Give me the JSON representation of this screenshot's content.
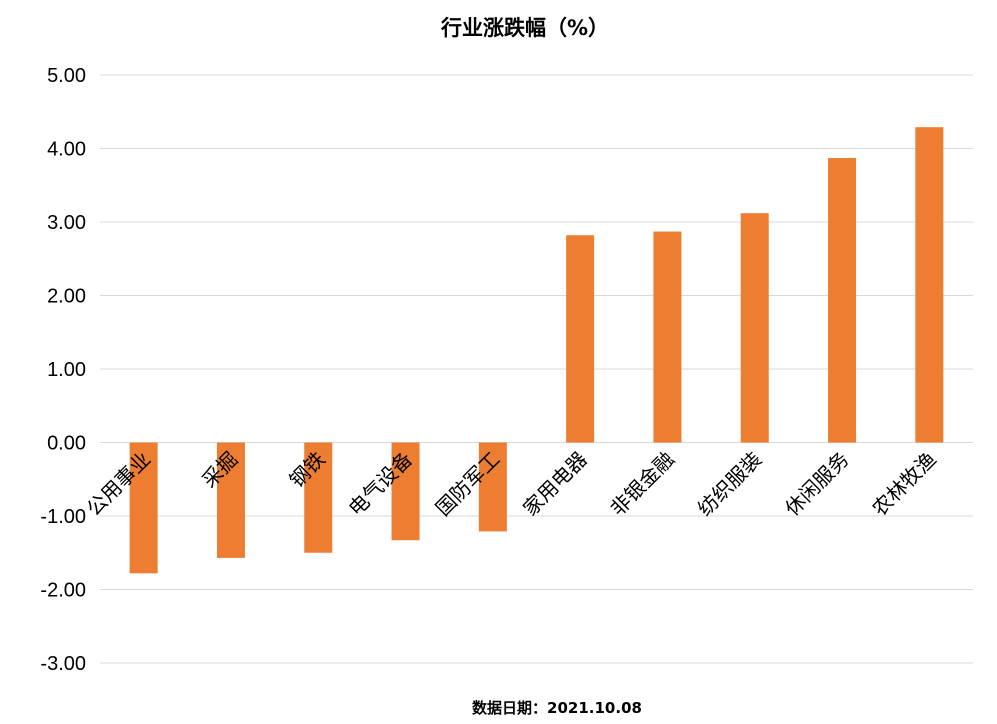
{
  "chart_data": {
    "type": "bar",
    "title": "行业涨跌幅（%）",
    "xlabel": "",
    "ylabel": "",
    "categories": [
      "公用事业",
      "采掘",
      "钢铁",
      "电气设备",
      "国防军工",
      "家用电器",
      "非银金融",
      "纺织服装",
      "休闲服务",
      "农林牧渔"
    ],
    "values": [
      -1.78,
      -1.57,
      -1.5,
      -1.33,
      -1.21,
      2.82,
      2.87,
      3.12,
      3.87,
      4.29
    ],
    "ylim": [
      -3,
      5
    ],
    "yticks": [
      "5.00",
      "4.00",
      "3.00",
      "2.00",
      "1.00",
      "0.00",
      "-1.00",
      "-2.00",
      "-3.00"
    ],
    "grid": true,
    "legend": "none",
    "bar_color": "#ED7D31",
    "grid_color": "#D9D9D9"
  },
  "footer": "数据日期：2021.10.08"
}
